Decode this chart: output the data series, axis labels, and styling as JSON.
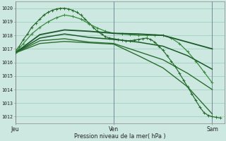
{
  "bg_color": "#cce8e0",
  "grid_color": "#99ccbb",
  "ylim": [
    1011.5,
    1020.5
  ],
  "xlim": [
    0,
    51
  ],
  "xlabel": "Pression niveau de la mer( hPa )",
  "xtick_labels": [
    "Jeu",
    "Ven",
    "Sam"
  ],
  "xtick_pos": [
    0,
    24,
    48
  ],
  "ylabel_vals": [
    1012,
    1013,
    1014,
    1015,
    1016,
    1017,
    1018,
    1019,
    1020
  ],
  "vlines_x": [
    0,
    24,
    48
  ],
  "vline_color": "#667788",
  "series": [
    {
      "x": [
        0,
        1,
        2,
        3,
        4,
        5,
        6,
        7,
        8,
        9,
        10,
        11,
        12,
        13,
        14,
        15,
        16,
        17,
        18,
        19,
        20,
        21,
        22,
        23,
        24,
        25,
        26,
        27,
        28,
        29,
        30,
        31,
        32,
        33,
        34,
        35,
        36,
        37,
        38,
        39,
        40,
        41,
        42,
        43,
        44,
        45,
        46,
        47,
        48,
        49,
        50
      ],
      "y": [
        1016.8,
        1017.2,
        1017.7,
        1018.1,
        1018.6,
        1018.9,
        1019.2,
        1019.5,
        1019.7,
        1019.85,
        1019.95,
        1020.0,
        1020.0,
        1019.95,
        1019.85,
        1019.7,
        1019.5,
        1019.2,
        1018.9,
        1018.6,
        1018.3,
        1018.1,
        1017.9,
        1017.8,
        1017.75,
        1017.7,
        1017.65,
        1017.6,
        1017.6,
        1017.65,
        1017.7,
        1017.75,
        1017.8,
        1017.7,
        1017.5,
        1017.2,
        1016.9,
        1016.5,
        1016.1,
        1015.7,
        1015.2,
        1014.7,
        1014.2,
        1013.7,
        1013.2,
        1012.7,
        1012.3,
        1012.1,
        1012.0,
        1011.95,
        1011.9
      ],
      "style": "marker",
      "color": "#2a6e30",
      "lw": 0.9,
      "ms": 3.0
    },
    {
      "x": [
        0,
        2,
        4,
        6,
        8,
        10,
        12,
        14,
        16,
        18,
        20,
        22,
        24,
        26,
        28,
        30,
        32,
        34,
        36,
        38,
        40,
        42,
        44,
        46,
        48
      ],
      "y": [
        1016.7,
        1017.4,
        1018.1,
        1018.6,
        1019.0,
        1019.3,
        1019.5,
        1019.4,
        1019.2,
        1018.85,
        1018.55,
        1018.3,
        1018.15,
        1018.1,
        1018.05,
        1018.0,
        1018.0,
        1018.0,
        1018.0,
        1017.8,
        1017.4,
        1016.8,
        1016.1,
        1015.3,
        1014.5
      ],
      "style": "marker",
      "color": "#3a8a40",
      "lw": 0.9,
      "ms": 3.0
    },
    {
      "x": [
        0,
        6,
        12,
        18,
        24,
        30,
        36,
        42,
        48
      ],
      "y": [
        1016.7,
        1018.05,
        1018.4,
        1018.3,
        1018.15,
        1018.1,
        1018.0,
        1017.5,
        1017.0
      ],
      "style": "plain",
      "color": "#1a5a28",
      "lw": 1.3,
      "ms": 0
    },
    {
      "x": [
        0,
        6,
        12,
        18,
        24,
        30,
        36,
        42,
        48
      ],
      "y": [
        1016.7,
        1017.8,
        1018.1,
        1017.85,
        1017.7,
        1017.5,
        1017.2,
        1016.5,
        1015.5
      ],
      "style": "plain",
      "color": "#1a5a28",
      "lw": 1.1,
      "ms": 0
    },
    {
      "x": [
        0,
        6,
        12,
        18,
        24,
        30,
        36,
        42,
        48
      ],
      "y": [
        1016.7,
        1017.6,
        1017.75,
        1017.5,
        1017.4,
        1016.8,
        1016.2,
        1015.2,
        1014.0
      ],
      "style": "plain",
      "color": "#2a6e30",
      "lw": 1.0,
      "ms": 0
    },
    {
      "x": [
        0,
        6,
        12,
        18,
        24,
        30,
        36,
        42,
        48
      ],
      "y": [
        1016.7,
        1017.4,
        1017.55,
        1017.45,
        1017.35,
        1016.5,
        1015.6,
        1014.2,
        1012.2
      ],
      "style": "plain",
      "color": "#2a6e30",
      "lw": 1.0,
      "ms": 0
    }
  ]
}
